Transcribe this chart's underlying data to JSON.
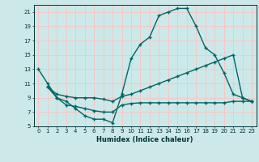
{
  "title": "",
  "xlabel": "Humidex (Indice chaleur)",
  "bg_color": "#cde8e8",
  "grid_color": "#f5c8c8",
  "line_color": "#006666",
  "xlim": [
    -0.5,
    23.5
  ],
  "ylim": [
    5,
    22
  ],
  "xticks": [
    0,
    1,
    2,
    3,
    4,
    5,
    6,
    7,
    8,
    9,
    10,
    11,
    12,
    13,
    14,
    15,
    16,
    17,
    18,
    19,
    20,
    21,
    22,
    23
  ],
  "yticks": [
    5,
    7,
    9,
    11,
    13,
    15,
    17,
    19,
    21
  ],
  "line1_x": [
    0,
    1,
    2,
    3,
    4,
    5,
    6,
    7,
    8,
    9,
    10,
    11,
    12,
    13,
    14,
    15,
    16,
    17,
    18,
    19,
    20,
    21,
    22,
    23
  ],
  "line1_y": [
    13,
    11,
    9,
    8.5,
    7.5,
    6.5,
    6.0,
    6.0,
    5.5,
    9.5,
    14.5,
    16.5,
    17.5,
    20.5,
    21.0,
    21.5,
    21.5,
    19.0,
    16.0,
    15.0,
    12.5,
    9.5,
    9.0,
    8.5
  ],
  "line2_x": [
    1,
    2,
    3,
    4,
    5,
    6,
    7,
    8,
    9,
    10,
    11,
    12,
    13,
    14,
    15,
    16,
    17,
    18,
    19,
    20,
    21,
    22,
    23
  ],
  "line2_y": [
    10.5,
    9.5,
    9.2,
    9.0,
    9.0,
    9.0,
    8.8,
    8.5,
    9.2,
    9.5,
    10.0,
    10.5,
    11.0,
    11.5,
    12.0,
    12.5,
    13.0,
    13.5,
    14.0,
    14.5,
    15.0,
    9.0,
    8.5
  ],
  "line3_x": [
    1,
    2,
    3,
    4,
    5,
    6,
    7,
    8,
    9,
    10,
    11,
    12,
    13,
    14,
    15,
    16,
    17,
    18,
    19,
    20,
    21,
    22,
    23
  ],
  "line3_y": [
    10.5,
    9.0,
    8.0,
    7.8,
    7.5,
    7.2,
    7.0,
    7.0,
    8.0,
    8.2,
    8.3,
    8.3,
    8.3,
    8.3,
    8.3,
    8.3,
    8.3,
    8.3,
    8.3,
    8.3,
    8.5,
    8.5,
    8.5
  ]
}
